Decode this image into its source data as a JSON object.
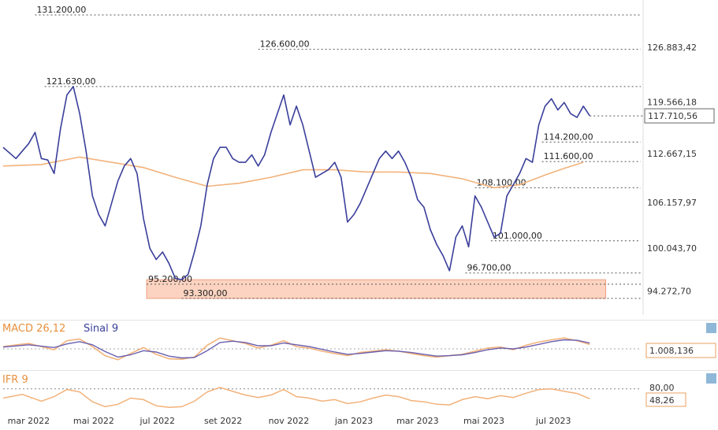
{
  "colors": {
    "price": "#3a3f9a",
    "ma": "#f2b27a",
    "zone_fill": "#fbd3c0",
    "zone_stroke": "#f0a080",
    "macd": "#f2b27a",
    "signal": "#6a5fb0",
    "ifr": "#f2b27a",
    "label_orange": "#e8903d",
    "label_blue": "#3a3f9a",
    "dotted": "#555555"
  },
  "chart_data": [
    {
      "type": "line",
      "ylim": [
        91500,
        133200
      ],
      "xlim": [
        0,
        100
      ],
      "x_ticks": [
        {
          "label": "mar 2022",
          "x": 4
        },
        {
          "label": "mai 2022",
          "x": 14.2
        },
        {
          "label": "jul 2022",
          "x": 24.2
        },
        {
          "label": "set 2022",
          "x": 34.5
        },
        {
          "label": "nov 2022",
          "x": 44.8
        },
        {
          "label": "jan 2023",
          "x": 55
        },
        {
          "label": "mar 2023",
          "x": 65
        },
        {
          "label": "mai 2023",
          "x": 75.4
        },
        {
          "label": "jul 2023",
          "x": 86.3
        }
      ],
      "y_ticks": [
        "126.883,42",
        "119.566,18",
        "112.667,15",
        "106.157,97",
        "100.043,70",
        "94.272,70"
      ],
      "y_tick_values": [
        126883.42,
        119566.18,
        112667.15,
        106157.97,
        100043.7,
        94272.7
      ],
      "current_value": "117.710,56",
      "current_y": 117710.56,
      "levels": [
        {
          "label": "131.200,00",
          "value": 131200,
          "x_start": 5
        },
        {
          "label": "126.600,00",
          "value": 126600,
          "x_start": 40
        },
        {
          "label": "121.630,00",
          "value": 121630,
          "x_start": 6.5
        },
        {
          "label": "114.200,00",
          "value": 114200,
          "x_start": 84.5
        },
        {
          "label": "111.600,00",
          "value": 111600,
          "x_start": 84.5
        },
        {
          "label": "108.100,00",
          "value": 108100,
          "x_start": 74
        },
        {
          "label": "101.000,00",
          "value": 101000,
          "x_start": 76.5
        },
        {
          "label": "96.700,00",
          "value": 96700,
          "x_start": 72.5
        },
        {
          "label": "95.200,00",
          "value": 95200,
          "x_start": 22.5
        },
        {
          "label": "93.300,00",
          "value": 93300,
          "x_start": 28
        }
      ],
      "zone": {
        "x": [
          22.5,
          94.5
        ],
        "y": [
          93300,
          95800
        ]
      },
      "series": [
        {
          "role": "price",
          "points": [
            [
              0,
              113500
            ],
            [
              2,
              112000
            ],
            [
              4,
              114000
            ],
            [
              5,
              115500
            ],
            [
              6,
              112000
            ],
            [
              7,
              111800
            ],
            [
              8,
              110000
            ],
            [
              9,
              116000
            ],
            [
              10,
              120500
            ],
            [
              11,
              121630
            ],
            [
              12,
              118000
            ],
            [
              13,
              113000
            ],
            [
              14,
              107000
            ],
            [
              15,
              104500
            ],
            [
              16,
              103000
            ],
            [
              17,
              106000
            ],
            [
              18,
              109000
            ],
            [
              19,
              111000
            ],
            [
              20,
              112000
            ],
            [
              21,
              110000
            ],
            [
              22,
              104000
            ],
            [
              23,
              100000
            ],
            [
              24,
              98500
            ],
            [
              25,
              99500
            ],
            [
              26,
              98000
            ],
            [
              27,
              96000
            ],
            [
              28,
              95800
            ],
            [
              29,
              96500
            ],
            [
              30,
              99500
            ],
            [
              31,
              103000
            ],
            [
              32,
              108500
            ],
            [
              33,
              112000
            ],
            [
              34,
              113500
            ],
            [
              35,
              113500
            ],
            [
              36,
              112000
            ],
            [
              37,
              111500
            ],
            [
              38,
              111500
            ],
            [
              39,
              112500
            ],
            [
              40,
              111000
            ],
            [
              41,
              112500
            ],
            [
              42,
              115500
            ],
            [
              43,
              118000
            ],
            [
              44,
              120500
            ],
            [
              45,
              116500
            ],
            [
              46,
              119000
            ],
            [
              47,
              116500
            ],
            [
              48,
              113000
            ],
            [
              49,
              109500
            ],
            [
              50,
              110000
            ],
            [
              51,
              110500
            ],
            [
              52,
              111500
            ],
            [
              53,
              109500
            ],
            [
              54,
              103500
            ],
            [
              55,
              104500
            ],
            [
              56,
              106000
            ],
            [
              57,
              108000
            ],
            [
              58,
              110000
            ],
            [
              59,
              112000
            ],
            [
              60,
              113000
            ],
            [
              61,
              112000
            ],
            [
              62,
              113000
            ],
            [
              63,
              111500
            ],
            [
              64,
              109500
            ],
            [
              65,
              106500
            ],
            [
              66,
              105500
            ],
            [
              67,
              102500
            ],
            [
              68,
              100500
            ],
            [
              69,
              99000
            ],
            [
              70,
              97000
            ],
            [
              71,
              101500
            ],
            [
              72,
              103000
            ],
            [
              73,
              100200
            ],
            [
              74,
              107000
            ],
            [
              75,
              105500
            ],
            [
              76,
              103500
            ],
            [
              77,
              101500
            ],
            [
              78,
              102000
            ],
            [
              79,
              107000
            ],
            [
              80,
              108500
            ],
            [
              81,
              110000
            ],
            [
              82,
              112000
            ],
            [
              83,
              111500
            ],
            [
              84,
              116500
            ],
            [
              85,
              119000
            ],
            [
              86,
              120000
            ],
            [
              87,
              118500
            ],
            [
              88,
              119500
            ],
            [
              89,
              118000
            ],
            [
              90,
              117500
            ],
            [
              91,
              119000
            ],
            [
              92,
              117710
            ]
          ]
        },
        {
          "role": "moving_average",
          "points": [
            [
              0,
              111000
            ],
            [
              6,
              111200
            ],
            [
              12,
              112200
            ],
            [
              17,
              111500
            ],
            [
              22,
              110800
            ],
            [
              27,
              109500
            ],
            [
              32,
              108300
            ],
            [
              37,
              108700
            ],
            [
              42,
              109500
            ],
            [
              47,
              110500
            ],
            [
              52,
              110500
            ],
            [
              57,
              110200
            ],
            [
              62,
              110200
            ],
            [
              67,
              110000
            ],
            [
              72,
              109300
            ],
            [
              77,
              108100
            ],
            [
              81,
              108500
            ],
            [
              85,
              109800
            ],
            [
              88,
              110700
            ],
            [
              91,
              111500
            ]
          ]
        }
      ]
    },
    {
      "type": "line",
      "title": "MACD 26,12",
      "signal_title": "Sinal 9",
      "current_value": "1.008,136",
      "ylim": [
        -4,
        4
      ],
      "series": [
        {
          "role": "macd",
          "points": [
            [
              0,
              0.5
            ],
            [
              4,
              1.2
            ],
            [
              8,
              -0.2
            ],
            [
              10,
              1.8
            ],
            [
              12,
              2.2
            ],
            [
              14,
              0.5
            ],
            [
              16,
              -1.5
            ],
            [
              18,
              -2.4
            ],
            [
              20,
              -1.0
            ],
            [
              22,
              0.3
            ],
            [
              24,
              -1.2
            ],
            [
              26,
              -2.2
            ],
            [
              28,
              -2.3
            ],
            [
              30,
              -1.8
            ],
            [
              32,
              0.8
            ],
            [
              34,
              2.4
            ],
            [
              36,
              1.8
            ],
            [
              38,
              1.2
            ],
            [
              40,
              0.2
            ],
            [
              42,
              0.8
            ],
            [
              44,
              1.8
            ],
            [
              46,
              0.5
            ],
            [
              48,
              0.2
            ],
            [
              50,
              -0.5
            ],
            [
              52,
              -1.0
            ],
            [
              54,
              -1.5
            ],
            [
              56,
              -0.8
            ],
            [
              58,
              -0.5
            ],
            [
              60,
              -0.2
            ],
            [
              62,
              -0.5
            ],
            [
              64,
              -1.0
            ],
            [
              66,
              -1.5
            ],
            [
              68,
              -1.8
            ],
            [
              70,
              -1.5
            ],
            [
              72,
              -1.2
            ],
            [
              74,
              -0.5
            ],
            [
              76,
              0.2
            ],
            [
              78,
              0.4
            ],
            [
              80,
              -0.2
            ],
            [
              82,
              0.8
            ],
            [
              84,
              1.5
            ],
            [
              86,
              2.0
            ],
            [
              88,
              2.4
            ],
            [
              90,
              1.8
            ],
            [
              92,
              1.0
            ]
          ]
        },
        {
          "role": "signal",
          "points": [
            [
              0,
              0.4
            ],
            [
              4,
              0.9
            ],
            [
              8,
              0.3
            ],
            [
              10,
              1.1
            ],
            [
              12,
              1.6
            ],
            [
              14,
              0.9
            ],
            [
              16,
              -0.6
            ],
            [
              18,
              -1.8
            ],
            [
              20,
              -1.3
            ],
            [
              22,
              -0.4
            ],
            [
              24,
              -0.7
            ],
            [
              26,
              -1.6
            ],
            [
              28,
              -2.0
            ],
            [
              30,
              -1.9
            ],
            [
              32,
              -0.4
            ],
            [
              34,
              1.4
            ],
            [
              36,
              1.7
            ],
            [
              38,
              1.4
            ],
            [
              40,
              0.7
            ],
            [
              42,
              0.7
            ],
            [
              44,
              1.3
            ],
            [
              46,
              0.9
            ],
            [
              48,
              0.5
            ],
            [
              50,
              -0.1
            ],
            [
              52,
              -0.7
            ],
            [
              54,
              -1.2
            ],
            [
              56,
              -1.0
            ],
            [
              58,
              -0.7
            ],
            [
              60,
              -0.4
            ],
            [
              62,
              -0.5
            ],
            [
              64,
              -0.8
            ],
            [
              66,
              -1.2
            ],
            [
              68,
              -1.6
            ],
            [
              70,
              -1.5
            ],
            [
              72,
              -1.3
            ],
            [
              74,
              -0.8
            ],
            [
              76,
              -0.2
            ],
            [
              78,
              0.2
            ],
            [
              80,
              0.0
            ],
            [
              82,
              0.4
            ],
            [
              84,
              1.0
            ],
            [
              86,
              1.6
            ],
            [
              88,
              2.0
            ],
            [
              90,
              1.9
            ],
            [
              92,
              1.3
            ]
          ]
        }
      ]
    },
    {
      "type": "line",
      "title": "IFR 9",
      "level_label": "80,00",
      "level": 80,
      "current_value": "48,26",
      "ylim": [
        0,
        100
      ],
      "series": [
        {
          "role": "ifr",
          "points": [
            [
              0,
              50
            ],
            [
              3,
              62
            ],
            [
              6,
              40
            ],
            [
              8,
              55
            ],
            [
              10,
              78
            ],
            [
              12,
              70
            ],
            [
              14,
              38
            ],
            [
              16,
              22
            ],
            [
              18,
              30
            ],
            [
              20,
              50
            ],
            [
              22,
              45
            ],
            [
              24,
              25
            ],
            [
              26,
              20
            ],
            [
              28,
              22
            ],
            [
              30,
              40
            ],
            [
              32,
              70
            ],
            [
              34,
              85
            ],
            [
              36,
              72
            ],
            [
              38,
              60
            ],
            [
              40,
              52
            ],
            [
              42,
              60
            ],
            [
              44,
              78
            ],
            [
              46,
              55
            ],
            [
              48,
              50
            ],
            [
              50,
              40
            ],
            [
              52,
              45
            ],
            [
              54,
              32
            ],
            [
              56,
              38
            ],
            [
              58,
              50
            ],
            [
              60,
              60
            ],
            [
              62,
              55
            ],
            [
              64,
              42
            ],
            [
              66,
              38
            ],
            [
              68,
              30
            ],
            [
              70,
              28
            ],
            [
              72,
              45
            ],
            [
              74,
              55
            ],
            [
              76,
              48
            ],
            [
              78,
              58
            ],
            [
              80,
              52
            ],
            [
              82,
              66
            ],
            [
              84,
              78
            ],
            [
              86,
              80
            ],
            [
              88,
              72
            ],
            [
              90,
              65
            ],
            [
              92,
              48
            ]
          ]
        }
      ]
    }
  ]
}
